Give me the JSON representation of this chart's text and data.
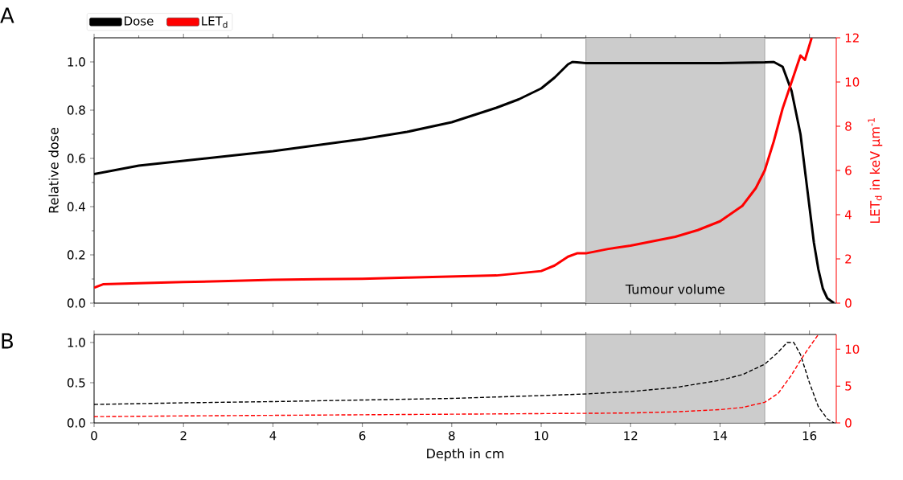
{
  "chart_data": [
    {
      "type": "line",
      "title": "A",
      "ylabel": "Relative dose",
      "y2label": "LET$_{d}$ in keV µm$^{-1}$",
      "xlim": [
        0,
        16.6
      ],
      "xticks": [
        0,
        2,
        4,
        6,
        8,
        10,
        12,
        14,
        16
      ],
      "ylim": [
        0,
        1.1
      ],
      "yticks": [
        {
          "value": 0,
          "label": "0.0"
        },
        {
          "value": 0.2,
          "label": "0.2"
        },
        {
          "value": 0.4,
          "label": "0.4"
        },
        {
          "value": 0.6,
          "label": "0.6"
        },
        {
          "value": 0.8,
          "label": "0.8"
        },
        {
          "value": 1,
          "label": "1.0"
        }
      ],
      "y2lim": [
        0,
        12
      ],
      "y2ticks": [
        0,
        2,
        4,
        6,
        8,
        10,
        12
      ],
      "tick_labels": "y",
      "legend": "top left",
      "bands": [
        {
          "axis": "x",
          "from": 11,
          "to": 15,
          "label": "Tumour volume",
          "color": "#cccccc"
        }
      ],
      "series": [
        {
          "name": "Dose",
          "color": "#000000",
          "x": [
            0,
            1,
            2,
            3,
            4,
            5,
            6,
            7,
            8,
            9,
            9.5,
            10,
            10.3,
            10.6,
            10.7,
            11,
            12,
            13,
            14,
            15,
            15.2,
            15.4,
            15.6,
            15.8,
            15.9,
            16.0,
            16.1,
            16.2,
            16.3,
            16.4,
            16.55
          ],
          "values": [
            0.535,
            0.57,
            0.59,
            0.61,
            0.63,
            0.655,
            0.68,
            0.71,
            0.75,
            0.81,
            0.845,
            0.89,
            0.935,
            0.99,
            1.0,
            0.995,
            0.995,
            0.995,
            0.995,
            0.998,
            1.0,
            0.98,
            0.88,
            0.7,
            0.55,
            0.4,
            0.25,
            0.14,
            0.06,
            0.02,
            0.0
          ]
        },
        {
          "name": "LET$_{d}$",
          "color": "#ff0000",
          "axis": "y2",
          "x": [
            0,
            0.2,
            1,
            2,
            3,
            4,
            5,
            6,
            7,
            8,
            9,
            9.5,
            10,
            10.3,
            10.6,
            10.8,
            11,
            11.5,
            12,
            12.5,
            13,
            13.5,
            14,
            14.5,
            14.8,
            15,
            15.2,
            15.4,
            15.6,
            15.8,
            15.9,
            16.05
          ],
          "values": [
            0.7,
            0.85,
            0.9,
            0.95,
            1.0,
            1.05,
            1.08,
            1.1,
            1.15,
            1.2,
            1.25,
            1.35,
            1.45,
            1.7,
            2.1,
            2.25,
            2.25,
            2.45,
            2.6,
            2.8,
            3.0,
            3.3,
            3.7,
            4.4,
            5.2,
            6.0,
            7.3,
            8.8,
            10.0,
            11.2,
            11.0,
            12.0
          ]
        }
      ]
    },
    {
      "type": "line",
      "title": "B",
      "xlabel": "Depth in cm",
      "xlim": [
        0,
        16.6
      ],
      "xticks": [
        0,
        2,
        4,
        6,
        8,
        10,
        12,
        14,
        16
      ],
      "ylim": [
        0,
        1.1
      ],
      "yticks": [
        {
          "value": 0,
          "label": "0.0"
        },
        {
          "value": 0.5,
          "label": "0.5"
        },
        {
          "value": 1,
          "label": "1.0"
        }
      ],
      "y2lim": [
        0,
        12
      ],
      "y2ticks": [
        0,
        5,
        10
      ],
      "bands": [
        {
          "axis": "x",
          "from": 11,
          "to": 15,
          "color": "#cccccc"
        }
      ],
      "series": [
        {
          "color": "#000000",
          "line_style": "dashed",
          "x": [
            0,
            2,
            4,
            6,
            8,
            10,
            11,
            12,
            13,
            14,
            14.5,
            15,
            15.3,
            15.5,
            15.65,
            15.8,
            16.0,
            16.2,
            16.4,
            16.55
          ],
          "values": [
            0.23,
            0.25,
            0.265,
            0.285,
            0.305,
            0.34,
            0.36,
            0.39,
            0.44,
            0.53,
            0.6,
            0.73,
            0.88,
            1.0,
            1.0,
            0.85,
            0.5,
            0.2,
            0.05,
            0.0
          ]
        },
        {
          "color": "#ff0000",
          "line_style": "dashed",
          "axis": "y2",
          "x": [
            0,
            2,
            11,
            12,
            13,
            14,
            14.5,
            15,
            15.3,
            15.6,
            15.8,
            16.0,
            16.2
          ],
          "values": [
            0.85,
            0.95,
            1.3,
            1.35,
            1.5,
            1.8,
            2.1,
            2.8,
            4.0,
            6.5,
            8.5,
            10.3,
            12.0
          ]
        }
      ]
    }
  ]
}
